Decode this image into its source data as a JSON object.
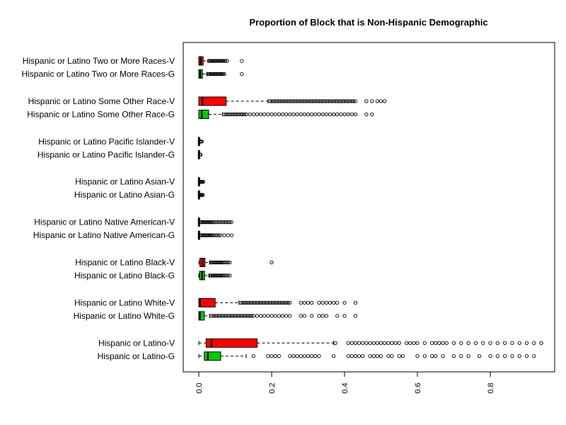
{
  "chart_data": {
    "type": "boxplot",
    "title": "Proportion of Block that is Non-Hispanic Demographic",
    "xlabel": "",
    "ylabel": "",
    "xlim": [
      -0.04,
      0.98
    ],
    "x_ticks": [
      "0.0",
      "0.2",
      "0.4",
      "0.6",
      "0.8"
    ],
    "x_tick_values": [
      0,
      0.2,
      0.4,
      0.6,
      0.8
    ],
    "colors": {
      "V": "#ff0000",
      "G": "#00cc00"
    },
    "categories": [
      "Hispanic or Latino Two or More Races-V",
      "Hispanic or Latino Two or More Races-G",
      "Hispanic or Latino Some Other Race-V",
      "Hispanic or Latino Some Other Race-G",
      "Hispanic or Latino Pacific Islander-V",
      "Hispanic or Latino Pacific Islander-G",
      "Hispanic or Latino Asian-V",
      "Hispanic or Latino Asian-G",
      "Hispanic or Latino Native American-V",
      "Hispanic or Latino Native American-G",
      "Hispanic or Latino Black-V",
      "Hispanic or Latino Black-G",
      "Hispanic or Latino White-V",
      "Hispanic or Latino White-G",
      "Hispanic or Latino-V",
      "Hispanic or Latino-G"
    ],
    "boxes": [
      {
        "group": "V",
        "wmin": 0,
        "q1": 0.0,
        "median": 0.005,
        "q3": 0.012,
        "wmax": 0.025,
        "outliers": [
          0.028,
          0.031,
          0.034,
          0.037,
          0.04,
          0.043,
          0.046,
          0.049,
          0.052,
          0.055,
          0.058,
          0.061,
          0.064,
          0.067,
          0.07,
          0.073,
          0.078,
          0.118
        ]
      },
      {
        "group": "G",
        "wmin": 0,
        "q1": 0.0,
        "median": 0.004,
        "q3": 0.01,
        "wmax": 0.022,
        "outliers": [
          0.025,
          0.028,
          0.031,
          0.034,
          0.037,
          0.04,
          0.043,
          0.046,
          0.049,
          0.052,
          0.055,
          0.058,
          0.061,
          0.064,
          0.067,
          0.07,
          0.118
        ]
      },
      {
        "group": "V",
        "wmin": 0,
        "q1": 0.0,
        "median": 0.01,
        "q3": 0.075,
        "wmax": 0.19,
        "outliers": [
          0.195,
          0.2,
          0.205,
          0.21,
          0.215,
          0.22,
          0.225,
          0.23,
          0.235,
          0.24,
          0.245,
          0.25,
          0.255,
          0.26,
          0.265,
          0.27,
          0.275,
          0.28,
          0.285,
          0.29,
          0.295,
          0.3,
          0.305,
          0.31,
          0.315,
          0.32,
          0.325,
          0.33,
          0.335,
          0.34,
          0.345,
          0.35,
          0.355,
          0.36,
          0.365,
          0.37,
          0.375,
          0.38,
          0.385,
          0.39,
          0.395,
          0.4,
          0.405,
          0.41,
          0.415,
          0.42,
          0.425,
          0.43,
          0.46,
          0.475,
          0.49,
          0.5,
          0.51
        ]
      },
      {
        "group": "G",
        "wmin": 0,
        "q1": 0.0,
        "median": 0.008,
        "q3": 0.027,
        "wmax": 0.065,
        "outliers": [
          0.07,
          0.075,
          0.08,
          0.085,
          0.09,
          0.095,
          0.1,
          0.105,
          0.11,
          0.115,
          0.12,
          0.125,
          0.13,
          0.14,
          0.15,
          0.16,
          0.17,
          0.18,
          0.19,
          0.2,
          0.21,
          0.22,
          0.23,
          0.24,
          0.25,
          0.26,
          0.27,
          0.28,
          0.29,
          0.3,
          0.31,
          0.32,
          0.33,
          0.34,
          0.35,
          0.36,
          0.37,
          0.38,
          0.39,
          0.4,
          0.41,
          0.42,
          0.43,
          0.46,
          0.475
        ]
      },
      {
        "group": "V",
        "wmin": 0,
        "q1": 0.0,
        "median": 0.0,
        "q3": 0.0,
        "wmax": 0.003,
        "outliers": [
          0.004,
          0.006,
          0.008
        ]
      },
      {
        "group": "G",
        "wmin": 0,
        "q1": 0.0,
        "median": 0.0,
        "q3": 0.0,
        "wmax": 0.002,
        "outliers": [
          0.003,
          0.005
        ]
      },
      {
        "group": "V",
        "wmin": 0,
        "q1": 0.0,
        "median": 0.0,
        "q3": 0.0,
        "wmax": 0.003,
        "outliers": [
          0.004,
          0.006,
          0.008,
          0.01,
          0.012
        ]
      },
      {
        "group": "G",
        "wmin": 0,
        "q1": 0.0,
        "median": 0.0,
        "q3": 0.0,
        "wmax": 0.002,
        "outliers": [
          0.003,
          0.005,
          0.007,
          0.009,
          0.011
        ]
      },
      {
        "group": "V",
        "wmin": 0,
        "q1": 0.0,
        "median": 0.0,
        "q3": 0.0,
        "wmax": 0.002,
        "outliers": [
          0.004,
          0.007,
          0.01,
          0.013,
          0.016,
          0.019,
          0.022,
          0.025,
          0.028,
          0.031,
          0.034,
          0.037,
          0.04,
          0.045,
          0.05,
          0.055,
          0.06,
          0.065,
          0.07,
          0.075,
          0.08,
          0.085,
          0.09
        ]
      },
      {
        "group": "G",
        "wmin": 0,
        "q1": 0.0,
        "median": 0.0,
        "q3": 0.0,
        "wmax": 0.002,
        "outliers": [
          0.004,
          0.007,
          0.01,
          0.013,
          0.016,
          0.019,
          0.022,
          0.025,
          0.028,
          0.031,
          0.034,
          0.037,
          0.04,
          0.045,
          0.05,
          0.055,
          0.06,
          0.07,
          0.08,
          0.09
        ]
      },
      {
        "group": "V",
        "wmin": 0,
        "q1": 0.003,
        "median": 0.01,
        "q3": 0.017,
        "wmax": 0.03,
        "outliers": [
          0.033,
          0.036,
          0.039,
          0.042,
          0.045,
          0.048,
          0.051,
          0.054,
          0.057,
          0.06,
          0.063,
          0.066,
          0.07,
          0.075,
          0.08,
          0.085,
          0.2
        ]
      },
      {
        "group": "G",
        "wmin": 0,
        "q1": 0.002,
        "median": 0.009,
        "q3": 0.016,
        "wmax": 0.028,
        "outliers": [
          0.031,
          0.034,
          0.037,
          0.04,
          0.043,
          0.046,
          0.049,
          0.052,
          0.055,
          0.058,
          0.061,
          0.064,
          0.067,
          0.07,
          0.075,
          0.08,
          0.085
        ]
      },
      {
        "group": "V",
        "wmin": 0,
        "q1": 0.0,
        "median": 0.003,
        "q3": 0.045,
        "wmax": 0.11,
        "outliers": [
          0.115,
          0.12,
          0.125,
          0.13,
          0.135,
          0.14,
          0.145,
          0.15,
          0.155,
          0.16,
          0.165,
          0.17,
          0.175,
          0.18,
          0.185,
          0.19,
          0.195,
          0.2,
          0.205,
          0.21,
          0.215,
          0.22,
          0.225,
          0.23,
          0.235,
          0.24,
          0.245,
          0.25,
          0.28,
          0.29,
          0.3,
          0.31,
          0.33,
          0.34,
          0.35,
          0.36,
          0.37,
          0.38,
          0.4,
          0.43
        ]
      },
      {
        "group": "G",
        "wmin": 0,
        "q1": 0.0,
        "median": 0.003,
        "q3": 0.015,
        "wmax": 0.03,
        "outliers": [
          0.035,
          0.04,
          0.045,
          0.05,
          0.055,
          0.06,
          0.065,
          0.07,
          0.075,
          0.08,
          0.085,
          0.09,
          0.095,
          0.1,
          0.105,
          0.11,
          0.115,
          0.12,
          0.125,
          0.13,
          0.135,
          0.14,
          0.145,
          0.15,
          0.16,
          0.17,
          0.18,
          0.19,
          0.2,
          0.21,
          0.22,
          0.23,
          0.24,
          0.25,
          0.28,
          0.29,
          0.31,
          0.33,
          0.34,
          0.35,
          0.38,
          0.4,
          0.43
        ]
      },
      {
        "group": "V",
        "wmin": 0,
        "q1": 0.02,
        "median": 0.035,
        "q3": 0.16,
        "wmax": 0.37,
        "outliers": [
          0.375,
          0.41,
          0.42,
          0.43,
          0.44,
          0.45,
          0.46,
          0.47,
          0.48,
          0.49,
          0.5,
          0.51,
          0.52,
          0.53,
          0.54,
          0.55,
          0.57,
          0.58,
          0.59,
          0.6,
          0.62,
          0.64,
          0.65,
          0.66,
          0.67,
          0.68,
          0.7,
          0.72,
          0.74,
          0.76,
          0.78,
          0.8,
          0.82,
          0.84,
          0.86,
          0.88,
          0.9,
          0.92,
          0.94
        ]
      },
      {
        "group": "G",
        "wmin": 0,
        "q1": 0.015,
        "median": 0.025,
        "q3": 0.06,
        "wmax": 0.13,
        "outliers": [
          0.15,
          0.19,
          0.2,
          0.21,
          0.22,
          0.25,
          0.26,
          0.27,
          0.28,
          0.29,
          0.3,
          0.31,
          0.32,
          0.33,
          0.37,
          0.41,
          0.42,
          0.43,
          0.44,
          0.45,
          0.47,
          0.48,
          0.49,
          0.5,
          0.52,
          0.53,
          0.55,
          0.56,
          0.6,
          0.62,
          0.64,
          0.65,
          0.67,
          0.7,
          0.72,
          0.74,
          0.77,
          0.8,
          0.82,
          0.84,
          0.86,
          0.88,
          0.9,
          0.92
        ]
      }
    ]
  }
}
